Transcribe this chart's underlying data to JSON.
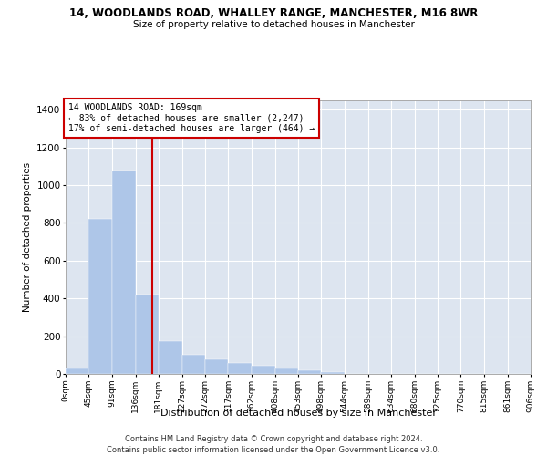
{
  "title": "14, WOODLANDS ROAD, WHALLEY RANGE, MANCHESTER, M16 8WR",
  "subtitle": "Size of property relative to detached houses in Manchester",
  "xlabel": "Distribution of detached houses by size in Manchester",
  "ylabel": "Number of detached properties",
  "bar_color": "#aec6e8",
  "background_color": "#dde5f0",
  "grid_color": "white",
  "bin_edges": [
    0,
    45,
    91,
    136,
    181,
    227,
    272,
    317,
    362,
    408,
    453,
    498,
    544,
    589,
    634,
    680,
    725,
    770,
    815,
    861,
    906
  ],
  "bin_labels": [
    "0sqm",
    "45sqm",
    "91sqm",
    "136sqm",
    "181sqm",
    "227sqm",
    "272sqm",
    "317sqm",
    "362sqm",
    "408sqm",
    "453sqm",
    "498sqm",
    "544sqm",
    "589sqm",
    "634sqm",
    "680sqm",
    "725sqm",
    "770sqm",
    "815sqm",
    "861sqm",
    "906sqm"
  ],
  "counts": [
    30,
    820,
    1080,
    420,
    175,
    100,
    75,
    60,
    45,
    30,
    18,
    8,
    0,
    0,
    0,
    0,
    0,
    0,
    0,
    0
  ],
  "property_size": 169,
  "property_label": "14 WOODLANDS ROAD: 169sqm",
  "annotation_line1": "← 83% of detached houses are smaller (2,247)",
  "annotation_line2": "17% of semi-detached houses are larger (464) →",
  "annotation_box_color": "white",
  "annotation_box_edge_color": "#cc0000",
  "vline_color": "#cc0000",
  "ylim": [
    0,
    1450
  ],
  "yticks": [
    0,
    200,
    400,
    600,
    800,
    1000,
    1200,
    1400
  ],
  "footnote1": "Contains HM Land Registry data © Crown copyright and database right 2024.",
  "footnote2": "Contains public sector information licensed under the Open Government Licence v3.0."
}
